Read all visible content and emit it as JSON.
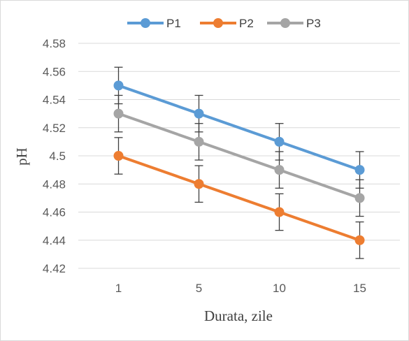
{
  "chart_data": {
    "type": "line",
    "categories": [
      "1",
      "5",
      "10",
      "15"
    ],
    "xlabel": "Durata, zile",
    "ylabel": "pH",
    "ylim": [
      4.42,
      4.58
    ],
    "yticks": [
      "4.42",
      "4.44",
      "4.46",
      "4.48",
      "4.5",
      "4.52",
      "4.54",
      "4.56",
      "4.58"
    ],
    "grid": true,
    "legend_position": "top",
    "error_bar": 0.013,
    "series": [
      {
        "name": "P1",
        "values": [
          4.55,
          4.53,
          4.51,
          4.49
        ],
        "color": "#5b9bd5"
      },
      {
        "name": "P2",
        "values": [
          4.5,
          4.48,
          4.46,
          4.44
        ],
        "color": "#ed7d31"
      },
      {
        "name": "P3",
        "values": [
          4.53,
          4.51,
          4.49,
          4.47
        ],
        "color": "#a5a5a5"
      }
    ]
  }
}
